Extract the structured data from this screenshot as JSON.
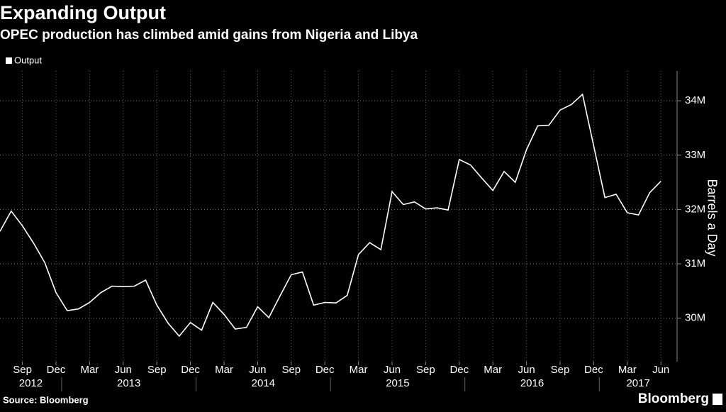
{
  "chart_data": {
    "type": "line",
    "title": "Expanding Output",
    "subtitle": "OPEC production has climbed amid gains from Nigeria and Libya",
    "y_axis_label": "Barrels a Day",
    "source": "Source: Bloomberg",
    "brand": "Bloomberg",
    "x": [
      "2012-07",
      "2012-08",
      "2012-09",
      "2012-10",
      "2012-11",
      "2012-12",
      "2013-01",
      "2013-02",
      "2013-03",
      "2013-04",
      "2013-05",
      "2013-06",
      "2013-07",
      "2013-08",
      "2013-09",
      "2013-10",
      "2013-11",
      "2013-12",
      "2014-01",
      "2014-02",
      "2014-03",
      "2014-04",
      "2014-05",
      "2014-06",
      "2014-07",
      "2014-08",
      "2014-09",
      "2014-10",
      "2014-11",
      "2014-12",
      "2015-01",
      "2015-02",
      "2015-03",
      "2015-04",
      "2015-05",
      "2015-06",
      "2015-07",
      "2015-08",
      "2015-09",
      "2015-10",
      "2015-11",
      "2015-12",
      "2016-01",
      "2016-02",
      "2016-03",
      "2016-04",
      "2016-05",
      "2016-06",
      "2016-07",
      "2016-08",
      "2016-09",
      "2016-10",
      "2016-11",
      "2016-12",
      "2017-01",
      "2017-02",
      "2017-03",
      "2017-04",
      "2017-05",
      "2017-06"
    ],
    "series": [
      {
        "name": "Output",
        "color": "#ffffff",
        "values": [
          31.6,
          31.97,
          31.7,
          31.38,
          31.02,
          30.47,
          30.14,
          30.17,
          30.29,
          30.47,
          30.59,
          30.58,
          30.59,
          30.7,
          30.24,
          29.91,
          29.67,
          29.92,
          29.78,
          30.29,
          30.07,
          29.8,
          29.83,
          30.21,
          30.01,
          30.41,
          30.8,
          30.85,
          30.24,
          30.29,
          30.28,
          30.42,
          31.17,
          31.39,
          31.26,
          32.33,
          32.09,
          32.14,
          32.01,
          32.03,
          31.99,
          32.92,
          32.82,
          32.58,
          32.35,
          32.7,
          32.5,
          33.1,
          33.54,
          33.55,
          33.83,
          33.93,
          34.12,
          33.17,
          32.22,
          32.28,
          31.94,
          31.9,
          32.31,
          32.52
        ]
      }
    ],
    "xlim": [
      "2012-07",
      "2017-07"
    ],
    "xticks": [
      {
        "value": "2012-09",
        "label": "Sep"
      },
      {
        "value": "2012-12",
        "label": "Dec"
      },
      {
        "value": "2013-03",
        "label": "Mar"
      },
      {
        "value": "2013-06",
        "label": "Jun"
      },
      {
        "value": "2013-09",
        "label": "Sep"
      },
      {
        "value": "2013-12",
        "label": "Dec"
      },
      {
        "value": "2014-03",
        "label": "Mar"
      },
      {
        "value": "2014-06",
        "label": "Jun"
      },
      {
        "value": "2014-09",
        "label": "Sep"
      },
      {
        "value": "2014-12",
        "label": "Dec"
      },
      {
        "value": "2015-03",
        "label": "Mar"
      },
      {
        "value": "2015-06",
        "label": "Jun"
      },
      {
        "value": "2015-09",
        "label": "Sep"
      },
      {
        "value": "2015-12",
        "label": "Dec"
      },
      {
        "value": "2016-03",
        "label": "Mar"
      },
      {
        "value": "2016-06",
        "label": "Jun"
      },
      {
        "value": "2016-09",
        "label": "Sep"
      },
      {
        "value": "2016-12",
        "label": "Dec"
      },
      {
        "value": "2017-03",
        "label": "Mar"
      },
      {
        "value": "2017-06",
        "label": "Jun"
      }
    ],
    "years": [
      "2012",
      "2013",
      "2014",
      "2015",
      "2016",
      "2017"
    ],
    "ylim": [
      29.2,
      34.55
    ],
    "yticks": [
      {
        "value": 30,
        "label": "30M"
      },
      {
        "value": 31,
        "label": "31M"
      },
      {
        "value": 32,
        "label": "32M"
      },
      {
        "value": 33,
        "label": "33M"
      },
      {
        "value": 34,
        "label": "34M"
      }
    ],
    "grid": true
  }
}
